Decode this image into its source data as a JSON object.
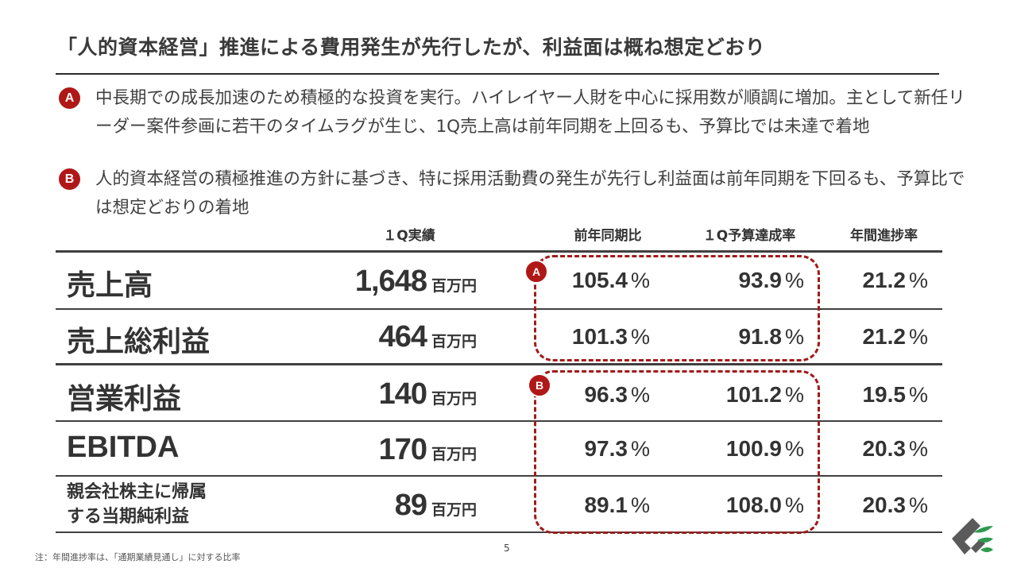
{
  "title": "「人的資本経営」推進による費用発生が先行したが、利益面は概ね想定どおり",
  "bullets": [
    {
      "badge": "A",
      "text": "中長期での成長加速のため積極的な投資を実行。ハイレイヤー人財を中心に採用数が順調に増加。主として新任リーダー案件参画に若干のタイムラグが生じ、1Q売上高は前年同期を上回るも、予算比では未達で着地"
    },
    {
      "badge": "B",
      "text": "人的資本経営の積極推進の方針に基づき、特に採用活動費の発生が先行し利益面は前年同期を下回るも、予算比では想定どおりの着地"
    }
  ],
  "table": {
    "headers": {
      "actual": "１Q実績",
      "yoy": "前年同期比",
      "budget": "１Q予算達成率",
      "progress": "年間進捗率"
    },
    "unit": "百万円",
    "pct_symbol": "%",
    "rows": [
      {
        "label": "売上高",
        "actual": "1,648",
        "yoy": "105.4",
        "budget": "93.9",
        "progress": "21.2"
      },
      {
        "label": "売上総利益",
        "actual": "464",
        "yoy": "101.3",
        "budget": "91.8",
        "progress": "21.2"
      },
      {
        "label": "営業利益",
        "actual": "140",
        "yoy": "96.3",
        "budget": "101.2",
        "progress": "19.5"
      },
      {
        "label": "EBITDA",
        "actual": "170",
        "yoy": "97.3",
        "budget": "100.9",
        "progress": "20.3"
      },
      {
        "label": "親会社株主に帰属する当期純利益",
        "label_line1": "親会社株主に帰属",
        "label_line2": "する当期純利益",
        "actual": "89",
        "yoy": "89.1",
        "budget": "108.0",
        "progress": "20.3"
      }
    ],
    "group_badges": {
      "a": "A",
      "b": "B"
    }
  },
  "footnote": "注：年間進捗率は、「通期業績見通し」に対する比率",
  "page_number": "5",
  "colors": {
    "accent": "#b01818",
    "text": "#333333",
    "logo_green": "#2e9a4e",
    "logo_gray": "#5a5a5a"
  }
}
